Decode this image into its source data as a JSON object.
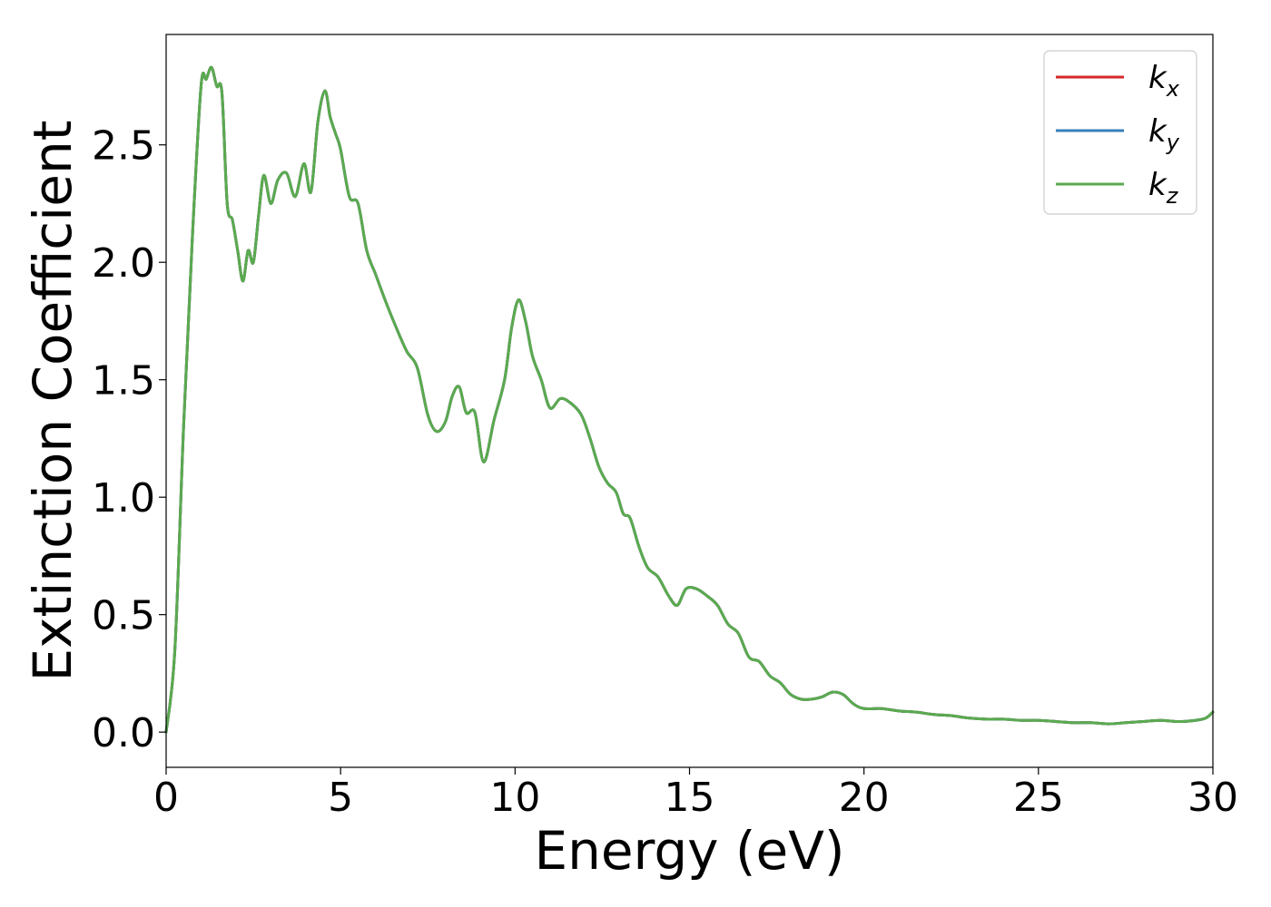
{
  "chart_data": {
    "type": "line",
    "title": "",
    "xlabel": "Energy (eV)",
    "ylabel": "Extinction Coefficient",
    "xlim": [
      0,
      30
    ],
    "ylim": [
      -0.15,
      2.97
    ],
    "xticks": [
      0,
      5,
      10,
      15,
      20,
      25,
      30
    ],
    "xtick_labels": [
      "0",
      "5",
      "10",
      "15",
      "20",
      "25",
      "30"
    ],
    "yticks": [
      0.0,
      0.5,
      1.0,
      1.5,
      2.0,
      2.5
    ],
    "ytick_labels": [
      "0.0",
      "0.5",
      "1.0",
      "1.5",
      "2.0",
      "2.5"
    ],
    "grid": false,
    "legend_position": "top-right",
    "series": [
      {
        "name": "k_x",
        "label_base": "k",
        "label_sub": "x",
        "color": "#d62728",
        "x": [
          0,
          0.25,
          0.5,
          0.75,
          1.0,
          1.15,
          1.3,
          1.45,
          1.6,
          1.75,
          1.9,
          2.05,
          2.2,
          2.35,
          2.5,
          2.65,
          2.8,
          3.0,
          3.2,
          3.45,
          3.7,
          3.95,
          4.15,
          4.35,
          4.55,
          4.7,
          4.85,
          5.0,
          5.25,
          5.5,
          5.75,
          6.0,
          6.3,
          6.6,
          6.9,
          7.2,
          7.5,
          7.75,
          8.0,
          8.2,
          8.4,
          8.6,
          8.85,
          9.1,
          9.4,
          9.7,
          9.9,
          10.1,
          10.3,
          10.5,
          10.75,
          11.0,
          11.3,
          11.6,
          11.9,
          12.15,
          12.4,
          12.65,
          12.9,
          13.1,
          13.3,
          13.55,
          13.8,
          14.1,
          14.4,
          14.65,
          14.9,
          15.2,
          15.5,
          15.8,
          16.1,
          16.4,
          16.7,
          17.0,
          17.3,
          17.6,
          17.9,
          18.2,
          18.5,
          18.8,
          19.1,
          19.4,
          19.7,
          20.0,
          20.5,
          21.0,
          21.5,
          22.0,
          22.5,
          23.0,
          23.5,
          24.0,
          24.5,
          25.0,
          25.5,
          26.0,
          26.5,
          27.0,
          27.5,
          28.0,
          28.5,
          29.0,
          29.5,
          29.8,
          30.0
        ],
        "values": [
          0.0,
          0.35,
          1.3,
          2.1,
          2.75,
          2.78,
          2.83,
          2.75,
          2.72,
          2.25,
          2.18,
          2.05,
          1.92,
          2.05,
          2.0,
          2.2,
          2.37,
          2.25,
          2.35,
          2.38,
          2.28,
          2.42,
          2.3,
          2.6,
          2.73,
          2.62,
          2.55,
          2.48,
          2.28,
          2.25,
          2.05,
          1.95,
          1.83,
          1.72,
          1.62,
          1.55,
          1.35,
          1.28,
          1.32,
          1.43,
          1.47,
          1.36,
          1.36,
          1.15,
          1.33,
          1.5,
          1.72,
          1.84,
          1.75,
          1.6,
          1.5,
          1.38,
          1.42,
          1.4,
          1.35,
          1.25,
          1.13,
          1.06,
          1.02,
          0.93,
          0.91,
          0.79,
          0.7,
          0.66,
          0.58,
          0.54,
          0.61,
          0.61,
          0.58,
          0.54,
          0.46,
          0.42,
          0.32,
          0.3,
          0.24,
          0.21,
          0.16,
          0.14,
          0.14,
          0.15,
          0.17,
          0.16,
          0.12,
          0.1,
          0.1,
          0.09,
          0.085,
          0.075,
          0.07,
          0.06,
          0.055,
          0.055,
          0.05,
          0.05,
          0.045,
          0.04,
          0.04,
          0.035,
          0.04,
          0.045,
          0.05,
          0.045,
          0.05,
          0.06,
          0.085
        ]
      },
      {
        "name": "k_y",
        "label_base": "k",
        "label_sub": "y",
        "color": "#377eb8",
        "x": [
          0,
          0.25,
          0.5,
          0.75,
          1.0,
          1.15,
          1.3,
          1.45,
          1.6,
          1.75,
          1.9,
          2.05,
          2.2,
          2.35,
          2.5,
          2.65,
          2.8,
          3.0,
          3.2,
          3.45,
          3.7,
          3.95,
          4.15,
          4.35,
          4.55,
          4.7,
          4.85,
          5.0,
          5.25,
          5.5,
          5.75,
          6.0,
          6.3,
          6.6,
          6.9,
          7.2,
          7.5,
          7.75,
          8.0,
          8.2,
          8.4,
          8.6,
          8.85,
          9.1,
          9.4,
          9.7,
          9.9,
          10.1,
          10.3,
          10.5,
          10.75,
          11.0,
          11.3,
          11.6,
          11.9,
          12.15,
          12.4,
          12.65,
          12.9,
          13.1,
          13.3,
          13.55,
          13.8,
          14.1,
          14.4,
          14.65,
          14.9,
          15.2,
          15.5,
          15.8,
          16.1,
          16.4,
          16.7,
          17.0,
          17.3,
          17.6,
          17.9,
          18.2,
          18.5,
          18.8,
          19.1,
          19.4,
          19.7,
          20.0,
          20.5,
          21.0,
          21.5,
          22.0,
          22.5,
          23.0,
          23.5,
          24.0,
          24.5,
          25.0,
          25.5,
          26.0,
          26.5,
          27.0,
          27.5,
          28.0,
          28.5,
          29.0,
          29.5,
          29.8,
          30.0
        ],
        "values": [
          0.0,
          0.35,
          1.3,
          2.1,
          2.75,
          2.78,
          2.83,
          2.75,
          2.72,
          2.25,
          2.18,
          2.05,
          1.92,
          2.05,
          2.0,
          2.2,
          2.37,
          2.25,
          2.35,
          2.38,
          2.28,
          2.42,
          2.3,
          2.6,
          2.73,
          2.62,
          2.55,
          2.48,
          2.28,
          2.25,
          2.05,
          1.95,
          1.83,
          1.72,
          1.62,
          1.55,
          1.35,
          1.28,
          1.32,
          1.43,
          1.47,
          1.36,
          1.36,
          1.15,
          1.33,
          1.5,
          1.72,
          1.84,
          1.75,
          1.6,
          1.5,
          1.38,
          1.42,
          1.4,
          1.35,
          1.25,
          1.13,
          1.06,
          1.02,
          0.93,
          0.91,
          0.79,
          0.7,
          0.66,
          0.58,
          0.54,
          0.61,
          0.61,
          0.58,
          0.54,
          0.46,
          0.42,
          0.32,
          0.3,
          0.24,
          0.21,
          0.16,
          0.14,
          0.14,
          0.15,
          0.17,
          0.16,
          0.12,
          0.1,
          0.1,
          0.09,
          0.085,
          0.075,
          0.07,
          0.06,
          0.055,
          0.055,
          0.05,
          0.05,
          0.045,
          0.04,
          0.04,
          0.035,
          0.04,
          0.045,
          0.05,
          0.045,
          0.05,
          0.06,
          0.085
        ]
      },
      {
        "name": "k_z",
        "label_base": "k",
        "label_sub": "z",
        "color": "#5aaa4f",
        "x": [
          0,
          0.25,
          0.5,
          0.75,
          1.0,
          1.15,
          1.3,
          1.45,
          1.6,
          1.75,
          1.9,
          2.05,
          2.2,
          2.35,
          2.5,
          2.65,
          2.8,
          3.0,
          3.2,
          3.45,
          3.7,
          3.95,
          4.15,
          4.35,
          4.55,
          4.7,
          4.85,
          5.0,
          5.25,
          5.5,
          5.75,
          6.0,
          6.3,
          6.6,
          6.9,
          7.2,
          7.5,
          7.75,
          8.0,
          8.2,
          8.4,
          8.6,
          8.85,
          9.1,
          9.4,
          9.7,
          9.9,
          10.1,
          10.3,
          10.5,
          10.75,
          11.0,
          11.3,
          11.6,
          11.9,
          12.15,
          12.4,
          12.65,
          12.9,
          13.1,
          13.3,
          13.55,
          13.8,
          14.1,
          14.4,
          14.65,
          14.9,
          15.2,
          15.5,
          15.8,
          16.1,
          16.4,
          16.7,
          17.0,
          17.3,
          17.6,
          17.9,
          18.2,
          18.5,
          18.8,
          19.1,
          19.4,
          19.7,
          20.0,
          20.5,
          21.0,
          21.5,
          22.0,
          22.5,
          23.0,
          23.5,
          24.0,
          24.5,
          25.0,
          25.5,
          26.0,
          26.5,
          27.0,
          27.5,
          28.0,
          28.5,
          29.0,
          29.5,
          29.8,
          30.0
        ],
        "values": [
          0.0,
          0.35,
          1.3,
          2.1,
          2.75,
          2.78,
          2.83,
          2.75,
          2.72,
          2.25,
          2.18,
          2.05,
          1.92,
          2.05,
          2.0,
          2.2,
          2.37,
          2.25,
          2.35,
          2.38,
          2.28,
          2.42,
          2.3,
          2.6,
          2.73,
          2.62,
          2.55,
          2.48,
          2.28,
          2.25,
          2.05,
          1.95,
          1.83,
          1.72,
          1.62,
          1.55,
          1.35,
          1.28,
          1.32,
          1.43,
          1.47,
          1.36,
          1.36,
          1.15,
          1.33,
          1.5,
          1.72,
          1.84,
          1.75,
          1.6,
          1.5,
          1.38,
          1.42,
          1.4,
          1.35,
          1.25,
          1.13,
          1.06,
          1.02,
          0.93,
          0.91,
          0.79,
          0.7,
          0.66,
          0.58,
          0.54,
          0.61,
          0.61,
          0.58,
          0.54,
          0.46,
          0.42,
          0.32,
          0.3,
          0.24,
          0.21,
          0.16,
          0.14,
          0.14,
          0.15,
          0.17,
          0.16,
          0.12,
          0.1,
          0.1,
          0.09,
          0.085,
          0.075,
          0.07,
          0.06,
          0.055,
          0.055,
          0.05,
          0.05,
          0.045,
          0.04,
          0.04,
          0.035,
          0.04,
          0.045,
          0.05,
          0.045,
          0.05,
          0.06,
          0.085
        ]
      }
    ]
  }
}
